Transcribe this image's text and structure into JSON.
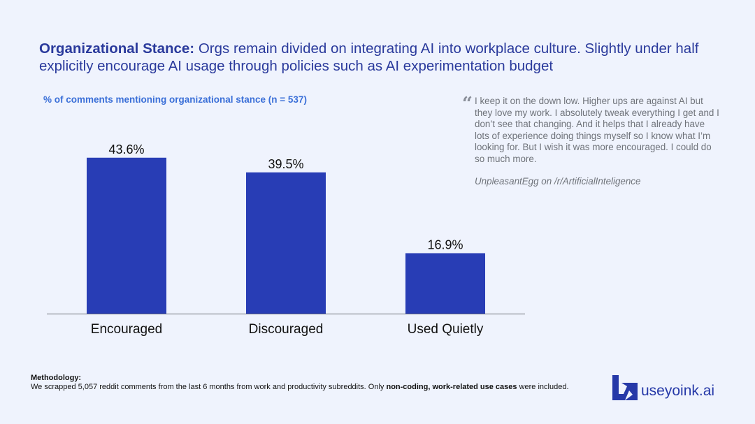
{
  "header": {
    "title_bold": "Organizational Stance:",
    "title_rest": " Orgs remain divided on integrating AI into workplace culture. Slightly under half explicitly encourage AI usage through policies such as AI experimentation budget"
  },
  "colors": {
    "bar": "#283db5",
    "title": "#2a3a9c",
    "subtitle": "#3a6fd8",
    "background": "#eff3fd"
  },
  "chart_data": {
    "type": "bar",
    "title": "% of comments mentioning organizational stance (n = 537)",
    "categories": [
      "Encouraged",
      "Discouraged",
      "Used Quietly"
    ],
    "values": [
      43.6,
      39.5,
      16.9
    ],
    "value_labels": [
      "43.6%",
      "39.5%",
      "16.9%"
    ],
    "xlabel": "",
    "ylabel": "",
    "ylim": [
      0,
      50
    ],
    "grid": false,
    "legend": "none"
  },
  "quote": {
    "mark": "“",
    "text": "I keep it on the down low. Higher ups are against AI but they love my work. I absolutely tweak everything I get and I don’t see that changing. And it helps that I already have lots of experience doing things myself so I know what I’m looking for. But I wish it was more encouraged. I could do so much more.",
    "attribution": "UnpleasantEgg on /r/ArtificialInteligence"
  },
  "methodology": {
    "heading": "Methodology:",
    "text_before": "We scrapped 5,057 reddit comments from the last 6 months from work and productivity subreddits. Only ",
    "text_bold": "non-coding, work-related use cases",
    "text_after": " were included."
  },
  "brand": {
    "logo_icon": "useyoink-logo-icon",
    "name": "useyoink.ai"
  }
}
